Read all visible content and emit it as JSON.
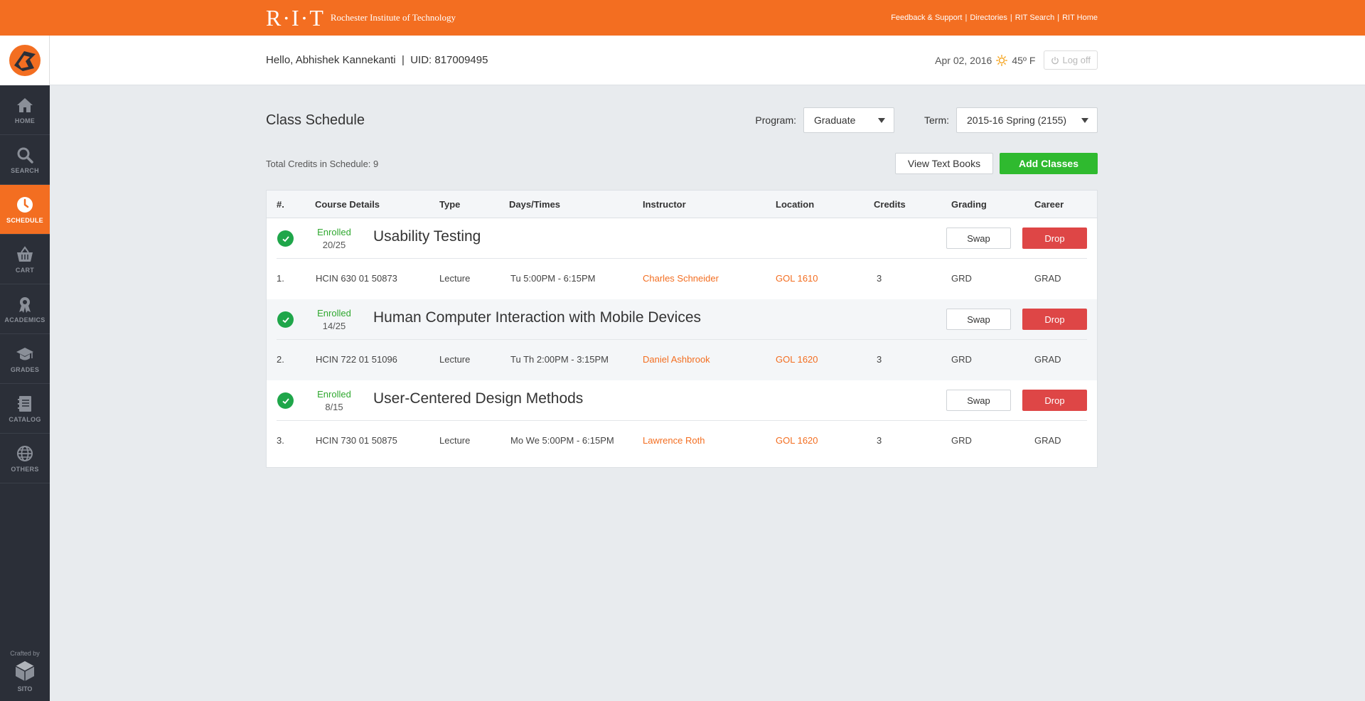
{
  "topbar": {
    "logo_letters": "R·I·T",
    "logo_name": "Rochester Institute of Technology",
    "links": [
      "Feedback & Support",
      "Directories",
      "RIT Search",
      "RIT Home"
    ]
  },
  "sidebar": {
    "items": [
      {
        "label": "HOME",
        "icon": "home-icon"
      },
      {
        "label": "SEARCH",
        "icon": "search-icon"
      },
      {
        "label": "SCHEDULE",
        "icon": "clock-icon",
        "active": true
      },
      {
        "label": "CART",
        "icon": "basket-icon"
      },
      {
        "label": "ACADEMICS",
        "icon": "award-icon"
      },
      {
        "label": "GRADES",
        "icon": "graduation-cap-icon"
      },
      {
        "label": "CATALOG",
        "icon": "notebook-icon"
      },
      {
        "label": "OTHERS",
        "icon": "globe-icon"
      }
    ],
    "crafted_label": "Crafted by",
    "crafted_name": "SITO"
  },
  "header": {
    "greeting": "Hello, Abhishek Kannekanti  |  UID: 817009495",
    "date": "Apr 02, 2016",
    "temperature": "45º F",
    "logoff": "Log off"
  },
  "page": {
    "title": "Class Schedule",
    "program_label": "Program:",
    "program_value": "Graduate",
    "term_label": "Term:",
    "term_value": "2015-16 Spring (2155)",
    "total_credits": "Total Credits in Schedule: 9",
    "view_textbooks": "View Text Books",
    "add_classes": "Add Classes"
  },
  "table": {
    "headers": {
      "num": "#.",
      "course": "Course Details",
      "type": "Type",
      "days": "Days/Times",
      "instructor": "Instructor",
      "location": "Location",
      "credits": "Credits",
      "grading": "Grading",
      "career": "Career"
    },
    "swap_label": "Swap",
    "drop_label": "Drop",
    "rows": [
      {
        "status": "Enrolled",
        "seats": "20/25",
        "name": "Usability Testing",
        "num": "1.",
        "code": "HCIN 630 01 50873",
        "type": "Lecture",
        "days": "Tu 5:00PM - 6:15PM",
        "instructor": "Charles Schneider",
        "location": "GOL 1610",
        "credits": "3",
        "grading": "GRD",
        "career": "GRAD"
      },
      {
        "status": "Enrolled",
        "seats": "14/25",
        "name": "Human Computer Interaction with Mobile Devices",
        "num": "2.",
        "code": "HCIN 722 01 51096",
        "type": "Lecture",
        "days": "Tu Th 2:00PM - 3:15PM",
        "instructor": "Daniel Ashbrook",
        "location": "GOL 1620",
        "credits": "3",
        "grading": "GRD",
        "career": "GRAD"
      },
      {
        "status": "Enrolled",
        "seats": "8/15",
        "name": "User-Centered Design Methods",
        "num": "3.",
        "code": "HCIN 730 01 50875",
        "type": "Lecture",
        "days": "Mo We 5:00PM - 6:15PM",
        "instructor": "Lawrence Roth",
        "location": "GOL 1620",
        "credits": "3",
        "grading": "GRD",
        "career": "GRAD"
      }
    ]
  },
  "colors": {
    "brand": "#f36e21",
    "sidebar": "#2b2f38",
    "success": "#2fba2f",
    "danger": "#de4646"
  }
}
